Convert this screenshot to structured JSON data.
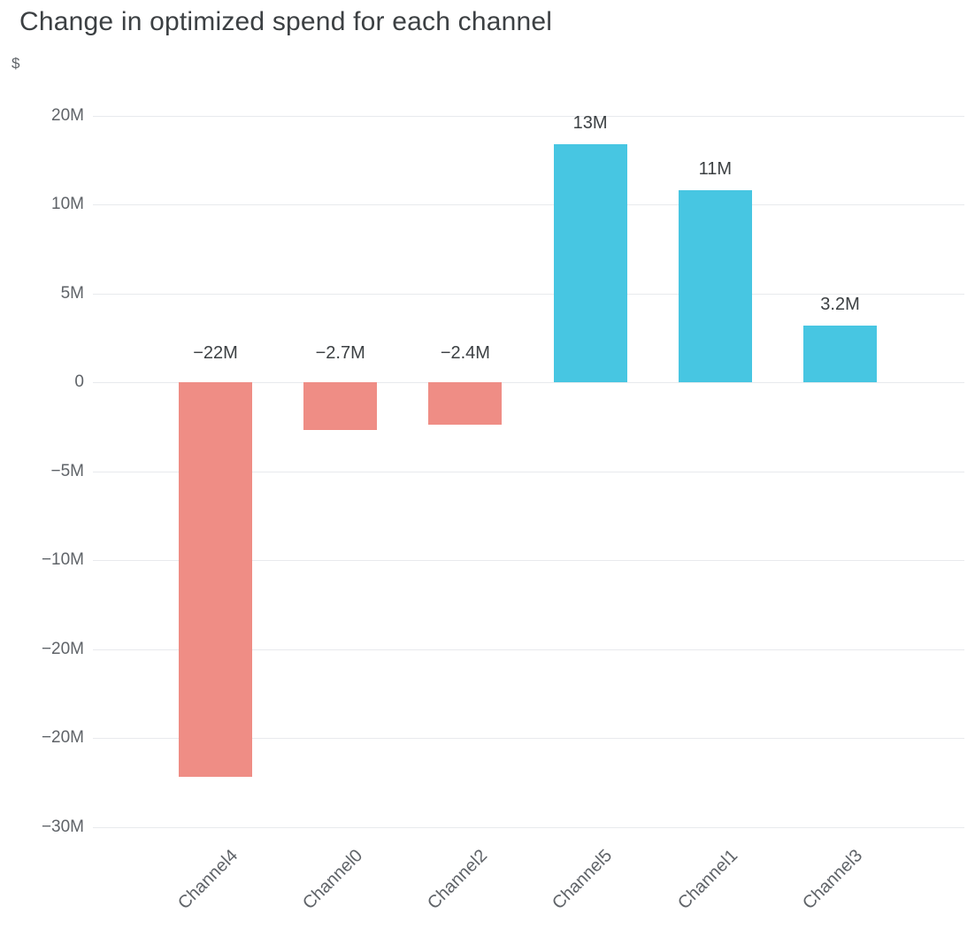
{
  "title": "Change in optimized spend for each channel",
  "y_axis_unit": "$",
  "colors": {
    "positive_bar": "#47C6E2",
    "negative_bar": "#EF8D85",
    "gridline": "#E8EAED",
    "title_text": "#3C4043",
    "axis_text": "#5F6368",
    "value_text": "#3C4043",
    "background": "#FFFFFF"
  },
  "chart_data": {
    "type": "bar",
    "title": "Change in optimized spend for each channel",
    "ylabel": "$",
    "xlabel": "",
    "legend": "none",
    "grid": "horizontal",
    "ylim_millions": [
      -26,
      16
    ],
    "categories": [
      "Channel4",
      "Channel0",
      "Channel2",
      "Channel5",
      "Channel1",
      "Channel3"
    ],
    "values_millions": [
      -22.2,
      -2.7,
      -2.4,
      13.4,
      10.8,
      3.2
    ],
    "bars": [
      {
        "category": "Channel4",
        "value_m": -22.2,
        "label": "−22M",
        "color_role": "negative"
      },
      {
        "category": "Channel0",
        "value_m": -2.7,
        "label": "−2.7M",
        "color_role": "negative"
      },
      {
        "category": "Channel2",
        "value_m": -2.4,
        "label": "−2.4M",
        "color_role": "negative"
      },
      {
        "category": "Channel5",
        "value_m": 13.4,
        "label": "13M",
        "color_role": "positive"
      },
      {
        "category": "Channel1",
        "value_m": 10.8,
        "label": "11M",
        "color_role": "positive"
      },
      {
        "category": "Channel3",
        "value_m": 3.2,
        "label": "3.2M",
        "color_role": "positive"
      }
    ],
    "y_ticks": [
      {
        "value_m": 15,
        "label": "20M"
      },
      {
        "value_m": 10,
        "label": "10M"
      },
      {
        "value_m": 5,
        "label": "5M"
      },
      {
        "value_m": 0,
        "label": "0"
      },
      {
        "value_m": -5,
        "label": "−5M"
      },
      {
        "value_m": -10,
        "label": "−10M"
      },
      {
        "value_m": -15,
        "label": "−20M"
      },
      {
        "value_m": -20,
        "label": "−20M"
      },
      {
        "value_m": -25,
        "label": "−30M"
      }
    ]
  }
}
